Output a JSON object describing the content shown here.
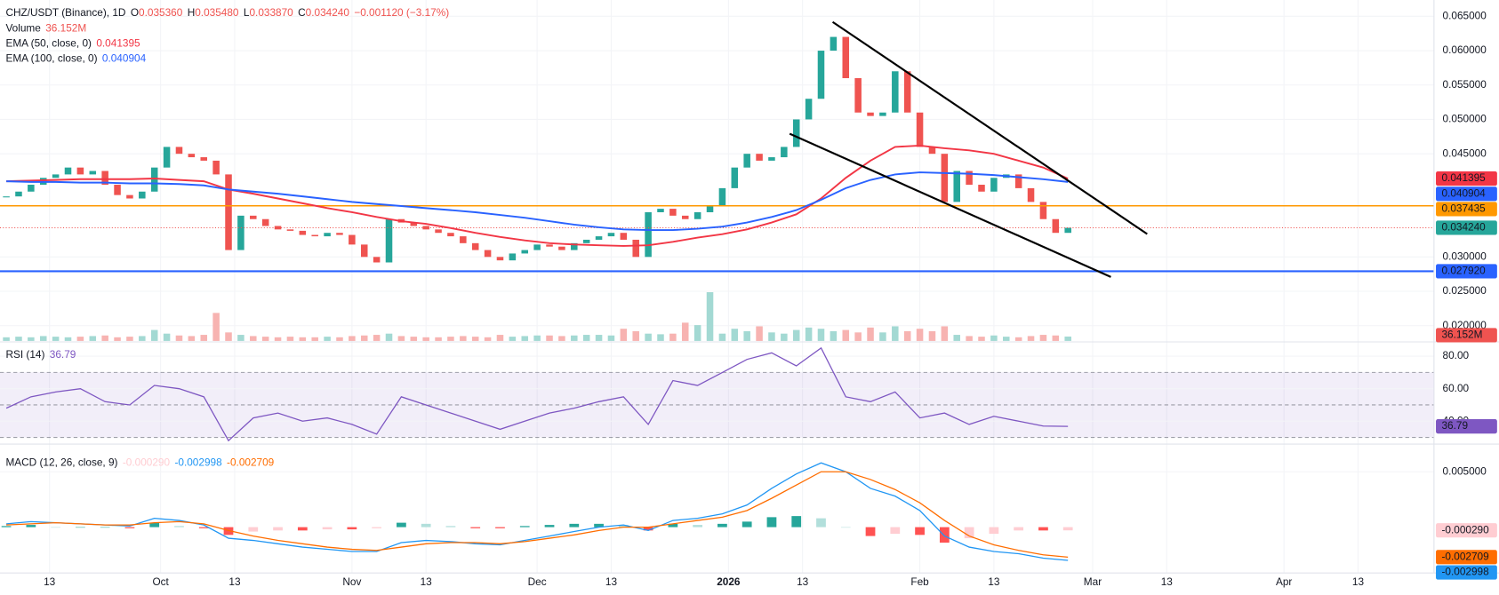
{
  "chart_data": [
    {
      "type": "candlestick",
      "title": "CHZ/USDT (Binance), 1D",
      "legend": [
        {
          "key": "O",
          "value": "0.035360"
        },
        {
          "key": "H",
          "value": "0.035480"
        },
        {
          "key": "L",
          "value": "0.033870"
        },
        {
          "key": "C",
          "value": "0.034240"
        }
      ],
      "change": "−0.001120 (−3.17%)",
      "x": [
        5,
        7,
        9,
        11,
        13,
        15,
        17,
        19,
        21,
        23,
        25,
        27,
        29,
        31,
        33,
        35,
        37,
        39,
        41,
        43,
        45,
        47,
        49,
        51,
        53,
        55,
        57,
        59,
        61,
        63,
        65,
        67,
        69,
        71,
        73,
        75,
        77,
        79,
        81,
        83,
        85,
        87,
        89,
        91,
        93,
        95,
        97,
        99,
        101,
        103,
        105,
        107,
        109,
        111,
        113,
        115,
        117,
        119,
        121,
        123,
        125,
        127,
        129,
        131,
        133,
        135,
        137,
        139,
        141,
        143,
        145,
        147,
        149,
        151,
        153,
        155,
        157,
        159,
        161,
        163,
        165,
        167,
        169,
        171,
        173,
        175,
        177
      ],
      "closes": [
        0.0388,
        0.0395,
        0.0405,
        0.0415,
        0.042,
        0.043,
        0.042,
        0.0425,
        0.0405,
        0.039,
        0.0385,
        0.0395,
        0.043,
        0.046,
        0.045,
        0.0445,
        0.044,
        0.042,
        0.031,
        0.036,
        0.0355,
        0.0345,
        0.034,
        0.0338,
        0.0332,
        0.033,
        0.0335,
        0.0332,
        0.0318,
        0.03,
        0.0292,
        0.0355,
        0.035,
        0.0345,
        0.034,
        0.0335,
        0.033,
        0.032,
        0.031,
        0.03,
        0.0295,
        0.0305,
        0.031,
        0.0318,
        0.0315,
        0.031,
        0.032,
        0.0325,
        0.033,
        0.0335,
        0.0325,
        0.03,
        0.0365,
        0.037,
        0.036,
        0.0355,
        0.0365,
        0.0375,
        0.04,
        0.043,
        0.045,
        0.044,
        0.0445,
        0.046,
        0.05,
        0.053,
        0.06,
        0.062,
        0.056,
        0.051,
        0.0505,
        0.051,
        0.057,
        0.051,
        0.046,
        0.045,
        0.038,
        0.0425,
        0.0405,
        0.0395,
        0.0415,
        0.042,
        0.04,
        0.038,
        0.0355,
        0.0335,
        0.03424
      ],
      "close_label": "0.034240",
      "up_color": "#26a69a",
      "down_color": "#ef5350",
      "volume": {
        "name": "Volume",
        "value_label": "36.152M",
        "up_color": "#a3d9d3",
        "down_color": "#f7b3b1",
        "values": [
          30,
          35,
          30,
          40,
          35,
          30,
          35,
          40,
          45,
          30,
          35,
          40,
          90,
          60,
          45,
          40,
          50,
          230,
          70,
          50,
          40,
          35,
          30,
          35,
          30,
          30,
          35,
          30,
          40,
          45,
          50,
          60,
          40,
          35,
          30,
          30,
          35,
          40,
          35,
          30,
          50,
          35,
          40,
          45,
          45,
          40,
          45,
          50,
          50,
          45,
          100,
          80,
          60,
          55,
          60,
          150,
          130,
          400,
          60,
          100,
          80,
          120,
          70,
          60,
          90,
          110,
          100,
          80,
          90,
          70,
          110,
          70,
          120,
          80,
          100,
          80,
          120,
          50,
          40,
          35,
          45,
          35,
          30,
          40,
          50,
          45,
          36.152
        ]
      },
      "series": [
        {
          "name": "EMA (50, close, 0)",
          "color": "#f23645",
          "value_label": "0.041395",
          "x": [
            5,
            9,
            13,
            17,
            21,
            25,
            29,
            33,
            37,
            41,
            45,
            49,
            53,
            57,
            61,
            65,
            69,
            73,
            77,
            81,
            85,
            89,
            93,
            97,
            101,
            105,
            109,
            113,
            117,
            121,
            125,
            129,
            133,
            137,
            141,
            145,
            149,
            153,
            157,
            161,
            165,
            169,
            173,
            177
          ],
          "values": [
            0.041,
            0.0411,
            0.0412,
            0.0413,
            0.0413,
            0.0413,
            0.0414,
            0.0412,
            0.041,
            0.0398,
            0.0392,
            0.0385,
            0.0378,
            0.0371,
            0.0365,
            0.0358,
            0.0352,
            0.0348,
            0.0342,
            0.0335,
            0.0329,
            0.0324,
            0.032,
            0.0318,
            0.0317,
            0.0316,
            0.0317,
            0.0322,
            0.0328,
            0.0333,
            0.034,
            0.035,
            0.0362,
            0.0385,
            0.0415,
            0.044,
            0.046,
            0.0462,
            0.0458,
            0.0455,
            0.045,
            0.044,
            0.043,
            0.041395
          ]
        },
        {
          "name": "EMA (100, close, 0)",
          "color": "#2962ff",
          "value_label": "0.040904",
          "x": [
            5,
            9,
            13,
            17,
            21,
            25,
            29,
            33,
            37,
            41,
            45,
            49,
            53,
            57,
            61,
            65,
            69,
            73,
            77,
            81,
            85,
            89,
            93,
            97,
            101,
            105,
            109,
            113,
            117,
            121,
            125,
            129,
            133,
            137,
            141,
            145,
            149,
            153,
            157,
            161,
            165,
            169,
            173,
            177
          ],
          "values": [
            0.041,
            0.0409,
            0.0409,
            0.0408,
            0.0408,
            0.0407,
            0.0407,
            0.0406,
            0.0404,
            0.0398,
            0.0395,
            0.0392,
            0.0388,
            0.0384,
            0.038,
            0.0377,
            0.0374,
            0.0371,
            0.0368,
            0.0365,
            0.0361,
            0.0357,
            0.0352,
            0.0347,
            0.0343,
            0.034,
            0.0339,
            0.0339,
            0.0341,
            0.0344,
            0.035,
            0.0358,
            0.0368,
            0.0383,
            0.04,
            0.0412,
            0.042,
            0.0423,
            0.0422,
            0.0421,
            0.0419,
            0.0416,
            0.0413,
            0.040904
          ]
        }
      ],
      "hlines": [
        {
          "value": 0.037435,
          "label": "0.037435",
          "color": "#ff9800"
        },
        {
          "value": 0.02792,
          "label": "0.027920",
          "color": "#2962ff"
        }
      ],
      "xlim": [
        3.98,
        236.3
      ],
      "xticks": [
        {
          "value": 12,
          "label": "13"
        },
        {
          "value": 30,
          "label": "Oct"
        },
        {
          "value": 42,
          "label": "13"
        },
        {
          "value": 61,
          "label": "Nov"
        },
        {
          "value": 73,
          "label": "13"
        },
        {
          "value": 91,
          "label": "Dec"
        },
        {
          "value": 103,
          "label": "13"
        },
        {
          "value": 122,
          "label": "2026"
        },
        {
          "value": 134,
          "label": "13"
        },
        {
          "value": 153,
          "label": "Feb"
        },
        {
          "value": 165,
          "label": "13"
        },
        {
          "value": 181,
          "label": "Mar"
        },
        {
          "value": 193,
          "label": "13"
        },
        {
          "value": 212,
          "label": "Apr"
        },
        {
          "value": 224,
          "label": "13"
        }
      ],
      "ylim": [
        0.01778,
        0.06736
      ],
      "yticks": [
        {
          "value": 0.065,
          "label": "0.065000"
        },
        {
          "value": 0.06,
          "label": "0.060000"
        },
        {
          "value": 0.055,
          "label": "0.055000"
        },
        {
          "value": 0.05,
          "label": "0.050000"
        },
        {
          "value": 0.045,
          "label": "0.045000"
        },
        {
          "value": 0.03,
          "label": "0.030000"
        },
        {
          "value": 0.025,
          "label": "0.025000"
        },
        {
          "value": 0.02,
          "label": "0.020000"
        }
      ],
      "grid": true
    },
    {
      "type": "rsi",
      "title": "RSI (14)",
      "color": "#7e57c2",
      "x": [
        5,
        9,
        13,
        17,
        21,
        25,
        29,
        33,
        37,
        41,
        45,
        49,
        53,
        57,
        61,
        65,
        69,
        73,
        77,
        81,
        85,
        89,
        93,
        97,
        101,
        105,
        109,
        113,
        117,
        121,
        125,
        129,
        133,
        137,
        141,
        145,
        149,
        153,
        157,
        161,
        165,
        169,
        173,
        177
      ],
      "values": [
        48,
        55,
        58,
        60,
        52,
        50,
        62,
        60,
        55,
        28,
        42,
        45,
        40,
        42,
        38,
        32,
        55,
        50,
        45,
        40,
        35,
        40,
        45,
        48,
        52,
        55,
        38,
        65,
        62,
        70,
        78,
        82,
        74,
        85,
        55,
        52,
        58,
        42,
        45,
        38,
        43,
        40,
        37,
        36.79
      ],
      "levels": [
        70,
        50,
        30
      ],
      "band": [
        30,
        70
      ],
      "ylim": [
        25.9,
        87.6
      ],
      "yticks": [
        {
          "value": 80,
          "label": "80.00"
        },
        {
          "value": 60,
          "label": "60.00"
        },
        {
          "value": 40,
          "label": "40.00"
        }
      ]
    },
    {
      "type": "macd",
      "title": "MACD (12, 26, close, 9)",
      "x": [
        5,
        9,
        13,
        17,
        21,
        25,
        29,
        33,
        37,
        41,
        45,
        49,
        53,
        57,
        61,
        65,
        69,
        73,
        77,
        81,
        85,
        89,
        93,
        97,
        101,
        105,
        109,
        113,
        117,
        121,
        125,
        129,
        133,
        137,
        141,
        145,
        149,
        153,
        157,
        161,
        165,
        169,
        173,
        177
      ],
      "histogram": {
        "value_label": "-0.000290",
        "colors": [
          "#26a69a",
          "#b2dfdb",
          "#ff5252",
          "#ffcdd2"
        ],
        "values": [
          0.0001,
          0.0002,
          0,
          0,
          0,
          -0.0001,
          0.0004,
          0.0001,
          -0.0001,
          -0.0007,
          -0.0004,
          -0.0003,
          -0.0003,
          -0.0002,
          -0.0002,
          -0.0001,
          0.0004,
          0.0003,
          0.0001,
          -0.0001,
          -0.0001,
          0.0001,
          0.0002,
          0.0003,
          0.0003,
          0.0002,
          -0.0003,
          0.0003,
          0.0002,
          0.0003,
          0.0005,
          0.0009,
          0.001,
          0.0008,
          0,
          -0.0008,
          -0.0006,
          -0.0007,
          -0.0014,
          -0.001,
          -0.0006,
          -0.0003,
          -0.0003,
          -0.00029
        ]
      },
      "series": [
        {
          "color": "#2196f3",
          "value_label": "-0.002998",
          "values": [
            0.0003,
            0.0005,
            0.0004,
            0.0003,
            0.0002,
            0.0001,
            0.0008,
            0.0006,
            0.0002,
            -0.001,
            -0.0012,
            -0.0015,
            -0.0018,
            -0.002,
            -0.0022,
            -0.0022,
            -0.0014,
            -0.0012,
            -0.0013,
            -0.0015,
            -0.0016,
            -0.0012,
            -0.0008,
            -0.0004,
            0.0,
            0.0002,
            -0.0003,
            0.0006,
            0.0008,
            0.0012,
            0.002,
            0.0035,
            0.0048,
            0.0058,
            0.005,
            0.0035,
            0.0028,
            0.0015,
            -0.0008,
            -0.0018,
            -0.0022,
            -0.0024,
            -0.0028,
            -0.002998
          ]
        },
        {
          "color": "#ff6d00",
          "value_label": "-0.002709",
          "values": [
            0.0002,
            0.0003,
            0.0004,
            0.0003,
            0.0002,
            0.0002,
            0.0004,
            0.0005,
            0.0003,
            -0.0003,
            -0.0008,
            -0.0012,
            -0.0015,
            -0.0018,
            -0.002,
            -0.0021,
            -0.0018,
            -0.0015,
            -0.0014,
            -0.0014,
            -0.0015,
            -0.0013,
            -0.001,
            -0.0007,
            -0.0003,
            0.0,
            0.0,
            0.0003,
            0.0006,
            0.0009,
            0.0015,
            0.0026,
            0.0038,
            0.005,
            0.005,
            0.0043,
            0.0034,
            0.0022,
            0.0006,
            -0.0008,
            -0.0016,
            -0.0021,
            -0.0025,
            -0.002709
          ]
        }
      ],
      "ylim": [
        -0.00414,
        0.00733
      ],
      "yticks": [
        {
          "value": 0.005,
          "label": "0.005000"
        }
      ]
    }
  ]
}
